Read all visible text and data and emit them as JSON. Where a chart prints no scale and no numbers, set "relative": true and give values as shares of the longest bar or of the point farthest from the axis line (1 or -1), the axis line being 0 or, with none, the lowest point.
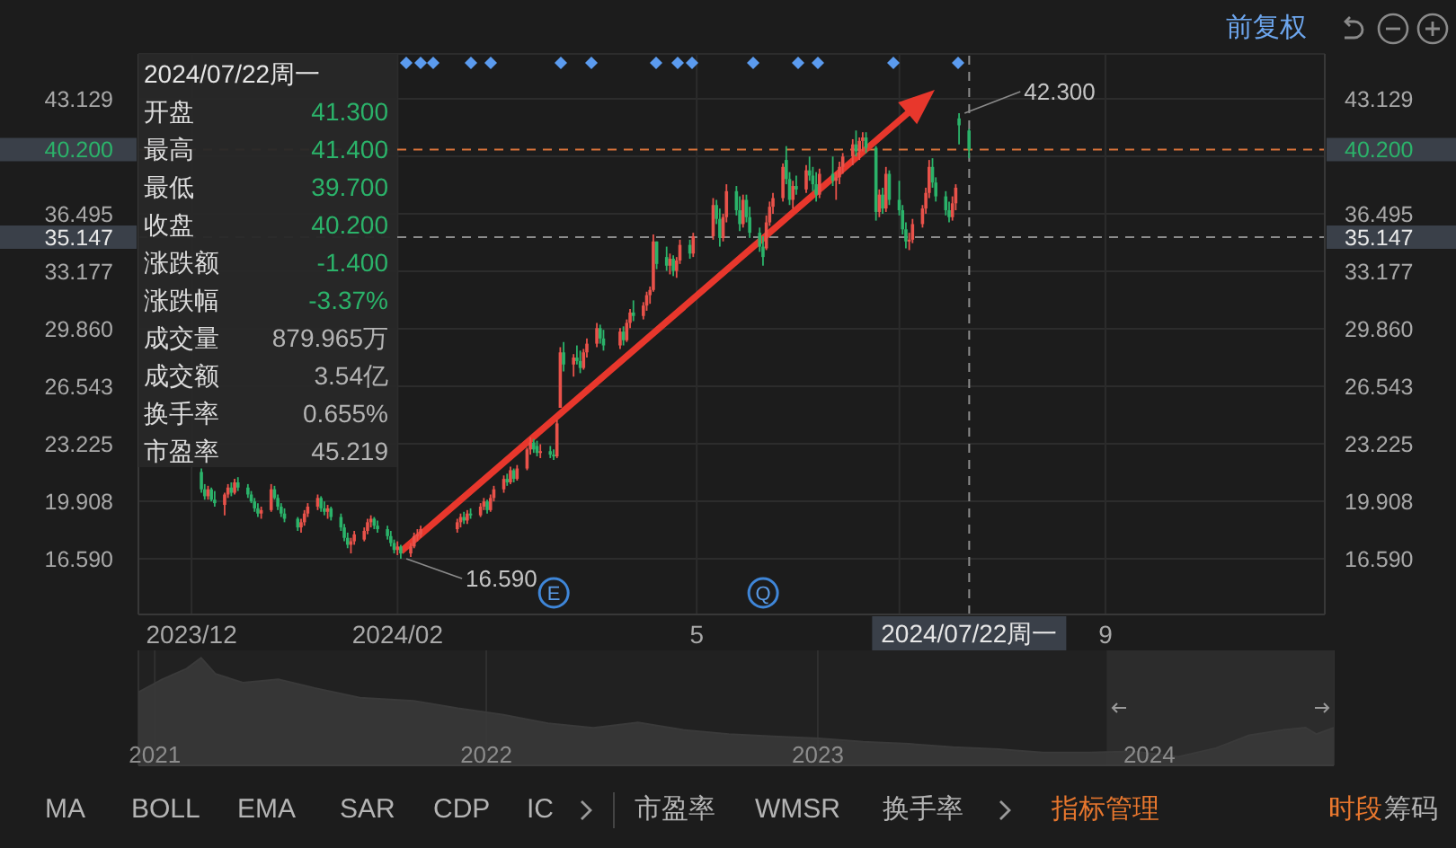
{
  "chart_data": [
    {
      "type": "candlestick",
      "x": [
        "2023-12-04",
        "2023-12-05",
        "2023-12-06",
        "2023-12-07",
        "2023-12-08",
        "2023-12-11",
        "2023-12-12",
        "2023-12-13",
        "2023-12-14",
        "2023-12-15",
        "2023-12-18",
        "2023-12-19",
        "2023-12-20",
        "2023-12-21",
        "2023-12-22",
        "2023-12-25",
        "2023-12-26",
        "2023-12-27",
        "2023-12-28",
        "2023-12-29",
        "2024-01-02",
        "2024-01-03",
        "2024-01-04",
        "2024-01-05",
        "2024-01-08",
        "2024-01-09",
        "2024-01-10",
        "2024-01-11",
        "2024-01-12",
        "2024-01-15",
        "2024-01-16",
        "2024-01-17",
        "2024-01-18",
        "2024-01-19",
        "2024-01-22",
        "2024-01-23",
        "2024-01-24",
        "2024-01-25",
        "2024-01-26",
        "2024-01-29",
        "2024-01-30",
        "2024-01-31",
        "2024-02-01",
        "2024-02-02",
        "2024-02-05",
        "2024-02-06",
        "2024-02-07",
        "2024-02-08",
        "2024-02-19",
        "2024-02-20",
        "2024-02-21",
        "2024-02-22",
        "2024-02-23",
        "2024-02-26",
        "2024-02-27",
        "2024-02-28",
        "2024-02-29",
        "2024-03-01",
        "2024-03-04",
        "2024-03-05",
        "2024-03-06",
        "2024-03-07",
        "2024-03-08",
        "2024-03-11",
        "2024-03-12",
        "2024-03-13",
        "2024-03-14",
        "2024-03-15",
        "2024-03-18",
        "2024-03-19",
        "2024-03-20",
        "2024-03-21",
        "2024-03-22",
        "2024-03-25",
        "2024-03-26",
        "2024-03-27",
        "2024-03-28",
        "2024-03-29",
        "2024-04-01",
        "2024-04-02",
        "2024-04-03",
        "2024-04-08",
        "2024-04-09",
        "2024-04-10",
        "2024-04-11",
        "2024-04-12",
        "2024-04-15",
        "2024-04-16",
        "2024-04-17",
        "2024-04-18",
        "2024-04-19",
        "2024-04-22",
        "2024-04-23",
        "2024-04-24",
        "2024-04-25",
        "2024-04-26",
        "2024-04-29",
        "2024-04-30",
        "2024-05-06",
        "2024-05-07",
        "2024-05-08",
        "2024-05-09",
        "2024-05-10",
        "2024-05-13",
        "2024-05-14",
        "2024-05-15",
        "2024-05-16",
        "2024-05-17",
        "2024-05-20",
        "2024-05-21",
        "2024-05-22",
        "2024-05-23",
        "2024-05-24",
        "2024-05-27",
        "2024-05-28",
        "2024-05-29",
        "2024-05-30",
        "2024-05-31",
        "2024-06-03",
        "2024-06-04",
        "2024-06-05",
        "2024-06-06",
        "2024-06-07",
        "2024-06-11",
        "2024-06-12",
        "2024-06-13",
        "2024-06-14",
        "2024-06-17",
        "2024-06-18",
        "2024-06-19",
        "2024-06-20",
        "2024-06-21",
        "2024-06-24",
        "2024-06-25",
        "2024-06-26",
        "2024-06-27",
        "2024-06-28",
        "2024-07-01",
        "2024-07-02",
        "2024-07-03",
        "2024-07-04",
        "2024-07-05",
        "2024-07-08",
        "2024-07-09",
        "2024-07-10",
        "2024-07-11",
        "2024-07-12",
        "2024-07-15",
        "2024-07-16",
        "2024-07-17",
        "2024-07-18",
        "2024-07-19",
        "2024-07-22"
      ],
      "ohlc": [
        [
          21.6,
          21.8,
          20.4,
          20.6
        ],
        [
          20.6,
          20.9,
          20.0,
          20.2
        ],
        [
          20.2,
          20.8,
          20.0,
          20.6
        ],
        [
          20.6,
          20.7,
          19.9,
          20.0
        ],
        [
          20.0,
          20.5,
          19.6,
          19.8
        ],
        [
          19.7,
          20.4,
          19.1,
          20.3
        ],
        [
          20.3,
          20.9,
          20.1,
          20.7
        ],
        [
          20.7,
          21.0,
          20.2,
          20.4
        ],
        [
          20.4,
          21.2,
          20.3,
          21.0
        ],
        [
          21.0,
          21.3,
          20.5,
          20.7
        ],
        [
          20.7,
          20.9,
          20.1,
          20.3
        ],
        [
          20.3,
          20.5,
          19.8,
          19.9
        ],
        [
          19.9,
          20.1,
          19.3,
          19.5
        ],
        [
          19.5,
          19.8,
          19.0,
          19.2
        ],
        [
          19.2,
          19.6,
          18.9,
          19.4
        ],
        [
          19.4,
          20.9,
          19.3,
          20.6
        ],
        [
          20.6,
          20.8,
          20.0,
          20.1
        ],
        [
          20.1,
          20.3,
          19.4,
          19.6
        ],
        [
          19.6,
          19.8,
          19.0,
          19.2
        ],
        [
          19.2,
          19.5,
          18.7,
          18.9
        ],
        [
          18.9,
          19.0,
          18.2,
          18.4
        ],
        [
          18.4,
          18.9,
          18.1,
          18.7
        ],
        [
          18.7,
          19.4,
          18.5,
          19.2
        ],
        [
          19.2,
          19.8,
          19.0,
          19.6
        ],
        [
          19.6,
          20.3,
          19.4,
          20.1
        ],
        [
          20.1,
          20.2,
          19.3,
          19.5
        ],
        [
          19.5,
          19.9,
          19.1,
          19.3
        ],
        [
          19.3,
          19.7,
          18.9,
          19.5
        ],
        [
          19.5,
          19.6,
          18.8,
          19.0
        ],
        [
          19.0,
          19.2,
          18.2,
          18.4
        ],
        [
          18.4,
          18.6,
          17.6,
          17.8
        ],
        [
          17.8,
          18.1,
          17.2,
          17.4
        ],
        [
          17.4,
          17.8,
          16.9,
          17.6
        ],
        [
          17.6,
          18.2,
          17.4,
          18.0
        ],
        [
          17.7,
          18.4,
          17.6,
          18.2
        ],
        [
          18.2,
          18.9,
          18.0,
          18.7
        ],
        [
          18.7,
          19.1,
          18.4,
          18.9
        ],
        [
          18.9,
          19.0,
          18.3,
          18.5
        ],
        [
          18.5,
          18.8,
          18.1,
          18.3
        ],
        [
          18.3,
          18.5,
          17.7,
          17.9
        ],
        [
          17.9,
          18.2,
          17.3,
          17.5
        ],
        [
          17.5,
          17.7,
          16.9,
          17.1
        ],
        [
          17.1,
          17.6,
          16.8,
          17.3
        ],
        [
          17.3,
          17.4,
          16.59,
          16.9
        ],
        [
          16.9,
          17.5,
          16.7,
          17.3
        ],
        [
          17.3,
          18.1,
          17.2,
          17.9
        ],
        [
          17.9,
          18.3,
          17.6,
          18.0
        ],
        [
          18.0,
          18.5,
          17.8,
          18.3
        ],
        [
          18.3,
          18.9,
          18.1,
          18.7
        ],
        [
          18.7,
          19.2,
          18.4,
          19.0
        ],
        [
          19.0,
          19.3,
          18.6,
          18.8
        ],
        [
          18.8,
          19.4,
          18.6,
          19.2
        ],
        [
          19.2,
          19.5,
          18.9,
          19.1
        ],
        [
          19.1,
          19.8,
          19.0,
          19.6
        ],
        [
          19.6,
          20.1,
          19.4,
          19.9
        ],
        [
          19.9,
          20.0,
          19.2,
          19.4
        ],
        [
          19.4,
          20.3,
          19.3,
          20.1
        ],
        [
          20.1,
          20.8,
          19.9,
          20.6
        ],
        [
          20.6,
          21.4,
          20.4,
          21.2
        ],
        [
          21.2,
          21.5,
          20.8,
          21.0
        ],
        [
          21.0,
          21.9,
          20.9,
          21.7
        ],
        [
          21.7,
          21.8,
          21.0,
          21.2
        ],
        [
          21.2,
          22.0,
          21.1,
          21.8
        ],
        [
          21.8,
          23.0,
          21.7,
          22.9
        ],
        [
          22.9,
          23.6,
          22.6,
          23.3
        ],
        [
          23.3,
          23.5,
          22.7,
          22.9
        ],
        [
          23.1,
          23.4,
          22.5,
          22.7
        ],
        [
          22.7,
          23.2,
          22.4,
          22.8
        ],
        [
          22.8,
          23.1,
          22.4,
          22.6
        ],
        [
          22.6,
          22.9,
          22.3,
          22.5
        ],
        [
          22.5,
          24.6,
          22.4,
          24.4
        ],
        [
          25.3,
          28.8,
          25.3,
          28.5
        ],
        [
          28.5,
          29.1,
          27.4,
          27.8
        ],
        [
          27.8,
          28.4,
          27.1,
          28.2
        ],
        [
          28.2,
          28.9,
          27.8,
          28.0
        ],
        [
          28.0,
          28.6,
          27.3,
          27.6
        ],
        [
          27.6,
          28.7,
          27.5,
          28.5
        ],
        [
          28.5,
          29.3,
          28.2,
          29.0
        ],
        [
          29.0,
          30.2,
          28.8,
          29.9
        ],
        [
          29.9,
          30.1,
          29.0,
          29.3
        ],
        [
          29.3,
          29.8,
          28.6,
          28.9
        ],
        [
          28.9,
          29.9,
          28.7,
          29.7
        ],
        [
          29.7,
          30.0,
          28.9,
          29.2
        ],
        [
          29.2,
          30.4,
          29.1,
          30.2
        ],
        [
          30.2,
          31.0,
          29.9,
          30.8
        ],
        [
          30.8,
          31.5,
          30.3,
          30.6
        ],
        [
          30.6,
          31.4,
          30.4,
          31.2
        ],
        [
          31.2,
          32.0,
          30.9,
          31.8
        ],
        [
          31.8,
          32.3,
          31.3,
          32.1
        ],
        [
          32.1,
          35.3,
          32.0,
          34.9
        ],
        [
          34.9,
          34.9,
          33.3,
          33.6
        ],
        [
          34.0,
          34.6,
          33.2,
          33.5
        ],
        [
          33.5,
          34.2,
          33.0,
          33.9
        ],
        [
          33.9,
          34.1,
          32.9,
          33.2
        ],
        [
          33.2,
          34.0,
          32.8,
          33.8
        ],
        [
          33.8,
          35.0,
          33.6,
          34.7
        ],
        [
          34.7,
          35.0,
          33.9,
          34.2
        ],
        [
          34.2,
          35.4,
          34.0,
          35.2
        ],
        [
          35.2,
          37.4,
          35.0,
          37.0
        ],
        [
          37.0,
          37.3,
          35.9,
          36.2
        ],
        [
          36.2,
          36.8,
          34.6,
          35.1
        ],
        [
          35.1,
          36.5,
          34.9,
          36.3
        ],
        [
          36.3,
          38.2,
          36.0,
          37.8
        ],
        [
          37.8,
          38.1,
          36.4,
          36.7
        ],
        [
          36.7,
          37.5,
          35.5,
          35.9
        ],
        [
          35.9,
          37.6,
          35.7,
          37.3
        ],
        [
          37.3,
          37.6,
          36.0,
          36.3
        ],
        [
          36.3,
          36.9,
          35.1,
          35.4
        ],
        [
          35.4,
          35.7,
          34.3,
          34.6
        ],
        [
          34.6,
          35.2,
          33.5,
          34.0
        ],
        [
          34.5,
          36.4,
          34.4,
          36.0
        ],
        [
          36.0,
          37.2,
          35.8,
          36.9
        ],
        [
          36.9,
          37.7,
          36.5,
          37.4
        ],
        [
          37.4,
          39.4,
          37.2,
          39.2
        ],
        [
          39.6,
          40.4,
          38.2,
          38.5
        ],
        [
          38.5,
          38.9,
          37.0,
          37.3
        ],
        [
          37.3,
          38.4,
          36.8,
          38.1
        ],
        [
          38.1,
          38.7,
          37.6,
          37.9
        ],
        [
          37.9,
          39.3,
          37.7,
          39.0
        ],
        [
          39.0,
          39.8,
          38.4,
          38.7
        ],
        [
          38.7,
          39.2,
          37.8,
          38.2
        ],
        [
          38.2,
          38.9,
          37.2,
          37.6
        ],
        [
          37.6,
          39.1,
          37.4,
          38.8
        ],
        [
          38.8,
          39.8,
          38.1,
          38.4
        ],
        [
          38.4,
          38.9,
          37.3,
          38.6
        ],
        [
          38.6,
          39.5,
          38.2,
          39.2
        ],
        [
          39.2,
          40.0,
          38.8,
          39.8
        ],
        [
          39.8,
          40.8,
          39.3,
          40.5
        ],
        [
          40.5,
          41.3,
          39.8,
          40.1
        ],
        [
          40.1,
          40.9,
          39.6,
          40.7
        ],
        [
          40.7,
          41.2,
          40.1,
          40.9
        ],
        [
          40.9,
          41.2,
          40.0,
          40.3
        ],
        [
          40.3,
          40.4,
          36.1,
          36.6
        ],
        [
          36.6,
          37.9,
          36.3,
          37.6
        ],
        [
          37.6,
          38.0,
          36.5,
          36.8
        ],
        [
          36.8,
          39.2,
          36.6,
          38.8
        ],
        [
          38.8,
          39.0,
          37.0,
          37.3
        ],
        [
          37.3,
          38.4,
          36.4,
          36.7
        ],
        [
          36.7,
          37.0,
          35.3,
          35.6
        ],
        [
          35.6,
          36.0,
          34.5,
          34.9
        ],
        [
          34.9,
          35.4,
          34.4,
          35.0
        ],
        [
          35.0,
          36.2,
          34.8,
          35.9
        ],
        [
          35.9,
          37.0,
          35.7,
          36.8
        ],
        [
          36.8,
          38.0,
          36.5,
          37.7
        ],
        [
          37.7,
          39.6,
          37.4,
          39.2
        ],
        [
          39.2,
          39.7,
          38.0,
          38.3
        ],
        [
          38.3,
          38.6,
          37.2,
          37.5
        ],
        [
          37.5,
          37.8,
          36.4,
          36.7
        ],
        [
          36.7,
          37.2,
          36.0,
          36.3
        ],
        [
          36.3,
          37.5,
          36.1,
          37.1
        ],
        [
          37.1,
          38.2,
          36.7,
          38.0
        ],
        [
          42.0,
          42.3,
          40.5,
          41.6
        ],
        [
          41.3,
          41.4,
          39.7,
          40.2
        ]
      ],
      "colors": [
        "#2bb36a",
        "#2bb36a",
        "#e9524a",
        "#2bb36a",
        "#2bb36a",
        "#e9524a",
        "#e9524a",
        "#2bb36a",
        "#e9524a",
        "#2bb36a",
        "#2bb36a",
        "#2bb36a",
        "#2bb36a",
        "#2bb36a",
        "#e9524a",
        "#e9524a",
        "#2bb36a",
        "#2bb36a",
        "#2bb36a",
        "#2bb36a",
        "#2bb36a",
        "#e9524a",
        "#e9524a",
        "#e9524a",
        "#e9524a",
        "#2bb36a",
        "#2bb36a",
        "#e9524a",
        "#2bb36a",
        "#2bb36a",
        "#2bb36a",
        "#2bb36a",
        "#e9524a",
        "#e9524a",
        "#e9524a",
        "#e9524a",
        "#e9524a",
        "#2bb36a",
        "#2bb36a",
        "#2bb36a",
        "#2bb36a",
        "#2bb36a",
        "#e9524a",
        "#2bb36a",
        "#e9524a",
        "#e9524a",
        "#e9524a",
        "#e9524a",
        "#e9524a",
        "#e9524a",
        "#2bb36a",
        "#e9524a",
        "#2bb36a",
        "#e9524a",
        "#e9524a",
        "#2bb36a",
        "#e9524a",
        "#e9524a",
        "#e9524a",
        "#2bb36a",
        "#e9524a",
        "#2bb36a",
        "#e9524a",
        "#e9524a",
        "#e9524a",
        "#2bb36a",
        "#2bb36a",
        "#e9524a",
        "#2bb36a",
        "#2bb36a",
        "#e9524a",
        "#e9524a",
        "#2bb36a",
        "#e9524a",
        "#2bb36a",
        "#2bb36a",
        "#e9524a",
        "#e9524a",
        "#e9524a",
        "#2bb36a",
        "#2bb36a",
        "#e9524a",
        "#2bb36a",
        "#e9524a",
        "#e9524a",
        "#2bb36a",
        "#e9524a",
        "#e9524a",
        "#e9524a",
        "#e9524a",
        "#2bb36a",
        "#2bb36a",
        "#e9524a",
        "#2bb36a",
        "#e9524a",
        "#e9524a",
        "#2bb36a",
        "#e9524a",
        "#e9524a",
        "#2bb36a",
        "#2bb36a",
        "#e9524a",
        "#e9524a",
        "#2bb36a",
        "#2bb36a",
        "#e9524a",
        "#2bb36a",
        "#2bb36a",
        "#2bb36a",
        "#2bb36a",
        "#e9524a",
        "#e9524a",
        "#e9524a",
        "#e9524a",
        "#2bb36a",
        "#2bb36a",
        "#e9524a",
        "#2bb36a",
        "#e9524a",
        "#2bb36a",
        "#2bb36a",
        "#2bb36a",
        "#e9524a",
        "#2bb36a",
        "#e9524a",
        "#e9524a",
        "#e9524a",
        "#e9524a",
        "#2bb36a",
        "#e9524a",
        "#e9524a",
        "#2bb36a",
        "#2bb36a",
        "#e9524a",
        "#2bb36a",
        "#e9524a",
        "#2bb36a",
        "#2bb36a",
        "#2bb36a",
        "#2bb36a",
        "#e9524a",
        "#e9524a",
        "#e9524a",
        "#e9524a",
        "#e9524a",
        "#2bb36a",
        "#2bb36a",
        "#2bb36a",
        "#2bb36a",
        "#e9524a",
        "#e9524a",
        "#2bb36a",
        "#2bb36a"
      ],
      "xlim": [
        "2023-11-15",
        "2024-11-06"
      ],
      "xticks": [
        {
          "value": "2023-12-01",
          "label": "2023/12"
        },
        {
          "value": "2024-02-01",
          "label": "2024/02"
        },
        {
          "value": "2024-05-01",
          "label": "5"
        },
        {
          "value": "2024-07-01",
          "label": null
        },
        {
          "value": "2024-09-01",
          "label": "9"
        }
      ],
      "ylim": [
        13.38,
        45.72
      ],
      "yticks": [
        {
          "value": 16.59,
          "label": "16.590"
        },
        {
          "value": 19.908,
          "label": "19.908"
        },
        {
          "value": 23.225,
          "label": "23.225"
        },
        {
          "value": 26.543,
          "label": "26.543"
        },
        {
          "value": 29.86,
          "label": "29.860"
        },
        {
          "value": 33.177,
          "label": "33.177"
        },
        {
          "value": 36.495,
          "label": "36.495"
        },
        {
          "value": 39.812,
          "label": null
        },
        {
          "value": 43.129,
          "label": "43.129"
        }
      ],
      "y2lim": [
        13.38,
        45.72
      ],
      "y2ticks": [
        {
          "value": 16.59,
          "label": "16.590"
        },
        {
          "value": 19.908,
          "label": "19.908"
        },
        {
          "value": 23.225,
          "label": "23.225"
        },
        {
          "value": 26.543,
          "label": "26.543"
        },
        {
          "value": 29.86,
          "label": "29.860"
        },
        {
          "value": 33.177,
          "label": "33.177"
        },
        {
          "value": 36.495,
          "label": "36.495"
        },
        {
          "value": 39.812,
          "label": null
        },
        {
          "value": 43.129,
          "label": "43.129"
        }
      ],
      "grid": true,
      "ref_lines": [
        {
          "axis": "y",
          "value": 40.2,
          "label": "40.200",
          "color": "#d9733a",
          "line_style": "dashed"
        },
        {
          "axis": "y",
          "value": 35.147,
          "label": "35.147",
          "color": "#8c8c8c",
          "line_style": "dashed"
        },
        {
          "axis": "x",
          "value": "2024-07-22",
          "label": "2024/07/22周一",
          "color": "#8c8c8c",
          "line_style": "dashed"
        }
      ],
      "annotations": [
        "2024/07/22周一",
        "开盘",
        "41.300",
        "最高",
        "41.400",
        "最低",
        "39.700",
        "收盘",
        "40.200",
        "涨跌额",
        "-1.400",
        "涨跌幅",
        "-3.37%",
        "成交量",
        "879.965万",
        "成交额",
        "3.54亿",
        "换手率",
        "0.655%",
        "市盈率",
        "45.219",
        "前复权",
        {
          "text": "42.300",
          "x": "2024-07-19",
          "y": 42.3
        },
        {
          "text": "16.590",
          "x": "2024-02-02",
          "y": 16.59
        },
        {
          "text": "E",
          "x": "2024-03-19"
        },
        {
          "text": "Q",
          "x": "2024-05-21"
        }
      ]
    },
    {
      "type": "area",
      "relative": true,
      "x": [
        "2020-12-14",
        "2021-01-09",
        "2021-02-05",
        "2021-02-21",
        "2021-03-09",
        "2021-04-08",
        "2021-05-17",
        "2021-06-26",
        "2021-08-15",
        "2021-10-13",
        "2021-12-01",
        "2022-01-20",
        "2022-03-10",
        "2022-04-29",
        "2022-06-17",
        "2022-08-06",
        "2022-09-25",
        "2022-11-13",
        "2023-01-02",
        "2023-02-20",
        "2023-04-11",
        "2023-05-30",
        "2023-07-19",
        "2023-09-06",
        "2023-10-26",
        "2023-12-14",
        "2024-02-02",
        "2024-03-14",
        "2024-04-20",
        "2024-05-28",
        "2024-06-21",
        "2024-07-03",
        "2024-07-22"
      ],
      "values": [
        0.68,
        0.8,
        0.9,
        1,
        0.85,
        0.77,
        0.8,
        0.72,
        0.63,
        0.6,
        0.53,
        0.47,
        0.39,
        0.35,
        0.4,
        0.33,
        0.29,
        0.27,
        0.25,
        0.22,
        0.2,
        0.17,
        0.15,
        0.12,
        0.12,
        0.13,
        0.08,
        0.16,
        0.28,
        0.33,
        0.35,
        0.29,
        0.35
      ],
      "color": "#3a3a3a",
      "xlim": [
        "2020-12-14",
        "2024-07-22"
      ],
      "xticks": [
        "2021",
        "2022",
        "2023",
        "2024"
      ],
      "grid": "x",
      "bands": [
        {
          "axis": "x",
          "from": "2023-11-15",
          "to": "2024-07-22",
          "color": "#2c2c2c"
        }
      ]
    },
    {
      "type": "other",
      "annotations": [
        "MA",
        "BOLL",
        "EMA",
        "SAR",
        "CDP",
        "IC",
        "市盈率",
        "WMSR",
        "换手率",
        "指标管理",
        "时段",
        "筹码"
      ]
    }
  ]
}
